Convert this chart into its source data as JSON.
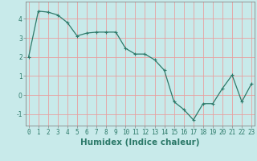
{
  "x": [
    0,
    1,
    2,
    3,
    4,
    5,
    6,
    7,
    8,
    9,
    10,
    11,
    12,
    13,
    14,
    15,
    16,
    17,
    18,
    19,
    20,
    21,
    22,
    23
  ],
  "y": [
    2.0,
    4.4,
    4.35,
    4.2,
    3.8,
    3.1,
    3.25,
    3.3,
    3.3,
    3.3,
    2.45,
    2.15,
    2.15,
    1.85,
    1.3,
    -0.35,
    -0.75,
    -1.3,
    -0.45,
    -0.45,
    0.35,
    1.05,
    -0.35,
    0.6
  ],
  "line_color": "#2d7a6a",
  "marker": "+",
  "marker_size": 3,
  "marker_linewidth": 0.8,
  "line_width": 0.9,
  "bg_color": "#c8eaea",
  "grid_color": "#e8a0a0",
  "xlabel": "Humidex (Indice chaleur)",
  "ylim": [
    -1.6,
    4.9
  ],
  "xlim": [
    -0.3,
    23.3
  ],
  "yticks": [
    -1,
    0,
    1,
    2,
    3,
    4
  ],
  "xticks": [
    0,
    1,
    2,
    3,
    4,
    5,
    6,
    7,
    8,
    9,
    10,
    11,
    12,
    13,
    14,
    15,
    16,
    17,
    18,
    19,
    20,
    21,
    22,
    23
  ],
  "xtick_labels": [
    "0",
    "1",
    "2",
    "3",
    "4",
    "5",
    "6",
    "7",
    "8",
    "9",
    "10",
    "11",
    "12",
    "13",
    "14",
    "15",
    "16",
    "17",
    "18",
    "19",
    "20",
    "21",
    "22",
    "23"
  ],
  "tick_fontsize": 5.5,
  "xlabel_fontsize": 7.5,
  "tick_color": "#2d7a6a",
  "axis_color": "#888888"
}
